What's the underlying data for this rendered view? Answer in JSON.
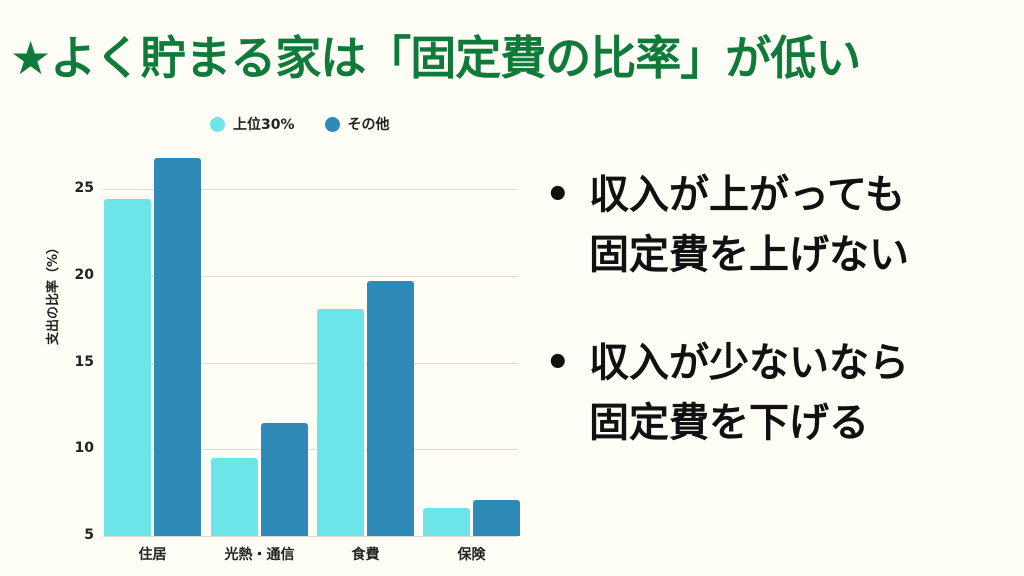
{
  "title": "★よく貯まる家は「固定費の比率」が低い",
  "legend": [
    {
      "label": "上位30%",
      "color": "#6ce5e8"
    },
    {
      "label": "その他",
      "color": "#2e8bb8"
    }
  ],
  "bullets": [
    {
      "mark": "•",
      "text": "収入が上がっても\n固定費を上げない"
    },
    {
      "mark": "•",
      "text": "収入が少ないなら\n固定費を下げる"
    }
  ],
  "chart_data": {
    "type": "bar",
    "title": "",
    "xlabel": "",
    "ylabel": "支出の比率（%）",
    "categories": [
      "住居",
      "光熱・通信",
      "食費",
      "保険"
    ],
    "series": [
      {
        "name": "上位30%",
        "color": "#6ce5e8",
        "values": [
          24.4,
          9.5,
          18.1,
          6.6
        ]
      },
      {
        "name": "その他",
        "color": "#2e8bb8",
        "values": [
          26.8,
          11.5,
          19.7,
          7.1
        ]
      }
    ],
    "yticks": [
      5,
      10,
      15,
      20,
      25
    ],
    "ylim": [
      5,
      27
    ],
    "grid": true,
    "legend_position": "top"
  }
}
